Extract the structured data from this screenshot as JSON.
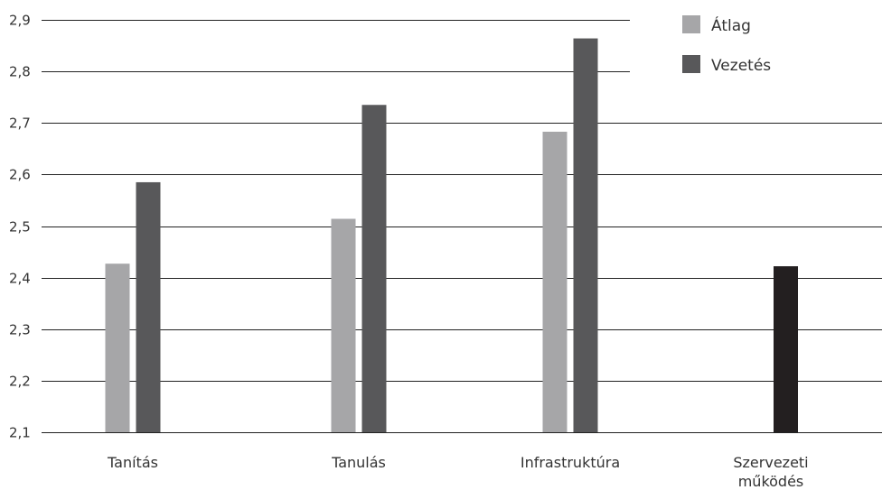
{
  "chart_data": {
    "type": "bar",
    "categories": [
      "Tanítás",
      "Tanulás",
      "Infrastruktúra",
      "Szervezeti működés"
    ],
    "category_lines": [
      [
        "Tanítás"
      ],
      [
        "Tanulás"
      ],
      [
        "Infrastruktúra"
      ],
      [
        "Szervezeti",
        "működés"
      ]
    ],
    "series": [
      {
        "name": "Átlag",
        "values": [
          2.427,
          2.514,
          2.683,
          null
        ],
        "color": "#a6a6a8"
      },
      {
        "name": "Vezetés",
        "values": [
          2.585,
          2.735,
          2.864,
          2.422
        ],
        "color": "#58585a"
      }
    ],
    "highlight": {
      "category_index": 3,
      "series_index": 1,
      "color": "#231f20"
    },
    "ylim": [
      2.1,
      2.9
    ],
    "yticks": [
      2.1,
      2.2,
      2.3,
      2.4,
      2.5,
      2.6,
      2.7,
      2.8,
      2.9
    ],
    "ytick_labels": [
      "2,1",
      "2,2",
      "2,3",
      "2,4",
      "2,5",
      "2,6",
      "2,7",
      "2,8",
      "2,9"
    ],
    "title": "",
    "xlabel": "",
    "ylabel": "",
    "grid": true,
    "legend_position": "top-right"
  }
}
